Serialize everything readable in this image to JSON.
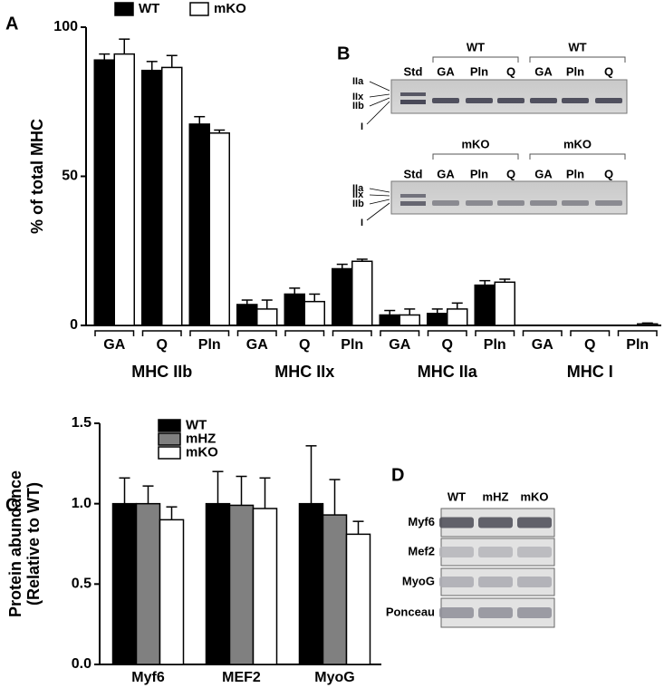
{
  "panel_labels": [
    "A",
    "B",
    "C",
    "D"
  ],
  "chart_data": [
    {
      "type": "bar",
      "ylabel": "% of total MHC",
      "groups": [
        "MHC IIb",
        "MHC IIx",
        "MHC IIa",
        "MHC I"
      ],
      "categories": [
        "GA",
        "Q",
        "Pln",
        "GA",
        "Q",
        "Pln",
        "GA",
        "Q",
        "Pln",
        "GA",
        "Q",
        "Pln"
      ],
      "series": [
        {
          "name": "WT",
          "color": "#000000",
          "values": [
            89,
            85.5,
            67.5,
            7,
            10.5,
            19,
            3.5,
            4,
            13.5,
            0,
            0,
            0
          ],
          "errors": [
            2,
            3,
            2.5,
            1.5,
            2,
            1.5,
            1.5,
            1.5,
            1.5,
            0,
            0,
            0
          ]
        },
        {
          "name": "mKO",
          "color": "#ffffff",
          "values": [
            91,
            86.5,
            64.5,
            5.5,
            8,
            21.5,
            3.5,
            5.5,
            14.5,
            0,
            0,
            0.5
          ],
          "errors": [
            5,
            4,
            1,
            3,
            2.5,
            0.7,
            2,
            2,
            1,
            0,
            0,
            0.3
          ]
        }
      ],
      "ylim": [
        0,
        100
      ],
      "yticks": [
        0,
        50,
        100
      ]
    },
    {
      "type": "bar",
      "ylabel": "Protein abundance",
      "ylabel_note": "(Relative to WT)",
      "categories": [
        "Myf6",
        "MEF2",
        "MyoG"
      ],
      "series": [
        {
          "name": "WT",
          "color": "#000000",
          "values": [
            1.0,
            1.0,
            1.0
          ],
          "errors": [
            0.16,
            0.2,
            0.36
          ]
        },
        {
          "name": "mHZ",
          "color": "#808080",
          "values": [
            1.0,
            0.99,
            0.93
          ],
          "errors": [
            0.11,
            0.18,
            0.22
          ]
        },
        {
          "name": "mKO",
          "color": "#ffffff",
          "values": [
            0.9,
            0.97,
            0.81
          ],
          "errors": [
            0.08,
            0.19,
            0.08
          ]
        }
      ],
      "ylim": [
        0,
        1.5
      ],
      "yticks": [
        {
          "value": 0,
          "label": "0.0"
        },
        {
          "value": 0.5,
          "label": "0.5"
        },
        {
          "value": 1,
          "label": "1.0"
        },
        {
          "value": 1.5,
          "label": "1.5"
        }
      ]
    }
  ],
  "blot_b": {
    "panels": [
      {
        "group_labels": [
          "WT",
          "WT"
        ],
        "lanes": [
          "Std",
          "GA",
          "Pln",
          "Q",
          "GA",
          "Pln",
          "Q"
        ],
        "bands": [
          "IIa",
          "IIx",
          "IIb",
          "I"
        ]
      },
      {
        "group_labels": [
          "mKO",
          "mKO"
        ],
        "lanes": [
          "Std",
          "GA",
          "Pln",
          "Q",
          "GA",
          "Pln",
          "Q"
        ],
        "bands": [
          "IIa",
          "IIx",
          "IIb",
          "I"
        ]
      }
    ]
  },
  "blot_d": {
    "columns": [
      "WT",
      "mHZ",
      "mKO"
    ],
    "rows": [
      "Myf6",
      "Mef2",
      "MyoG",
      "Ponceau"
    ]
  }
}
